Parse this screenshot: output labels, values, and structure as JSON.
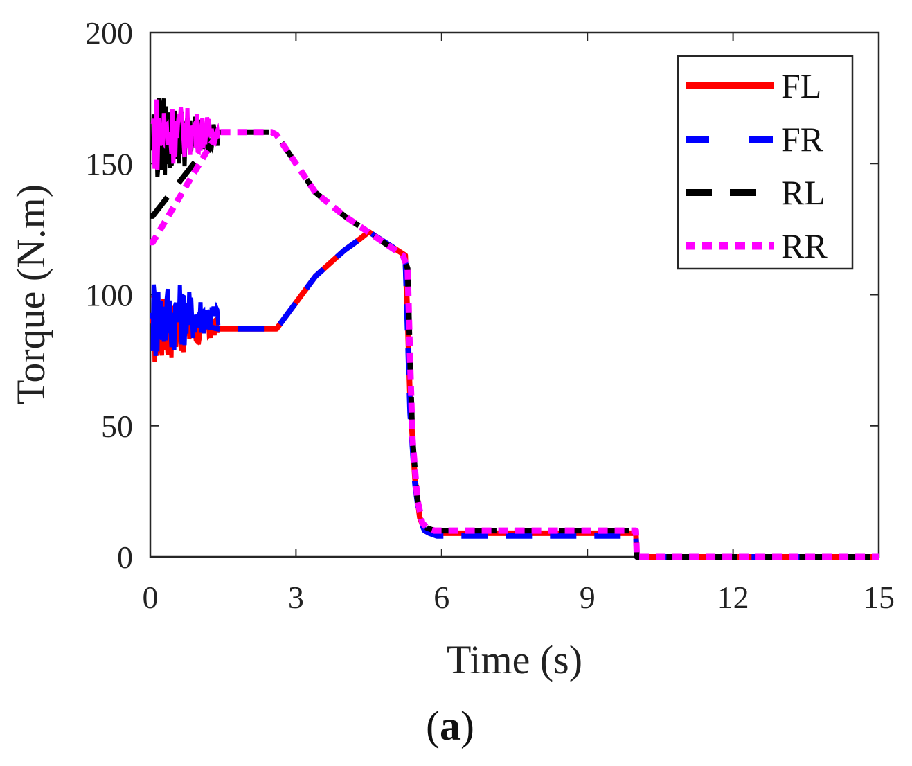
{
  "chart_data": {
    "type": "line",
    "title": "",
    "xlabel": "Time (s)",
    "ylabel": "Torque (N.m)",
    "caption_open": "(",
    "caption_letter": "a",
    "caption_close": ")",
    "xlim": [
      0,
      15
    ],
    "ylim": [
      0,
      200
    ],
    "xticks": [
      0,
      3,
      6,
      9,
      12,
      15
    ],
    "yticks": [
      0,
      50,
      100,
      150,
      200
    ],
    "grid": false,
    "legend_position": "top-right",
    "colors": {
      "FL": "#ff0000",
      "FR": "#0000ff",
      "RL": "#000000",
      "RR": "#ff00ff"
    },
    "series": [
      {
        "name": "FL",
        "style": "solid",
        "color": "#ff0000",
        "oscillation": {
          "t_start": 0.05,
          "t_end": 1.4,
          "center": 87,
          "amplitude": 15
        },
        "x": [
          0,
          0.05,
          1.4,
          2.5,
          2.6,
          3.0,
          3.4,
          4.0,
          4.3,
          4.5,
          5.25,
          5.3,
          5.35,
          5.45,
          5.55,
          5.65,
          5.75,
          5.9,
          6.2,
          10.0,
          10.02,
          15
        ],
        "y": [
          90,
          90,
          87,
          87,
          87,
          97,
          107,
          117,
          121,
          124,
          115,
          90,
          60,
          30,
          15,
          10,
          9,
          9,
          9,
          9,
          0,
          0
        ]
      },
      {
        "name": "FR",
        "style": "dashed",
        "color": "#0000ff",
        "oscillation": {
          "t_start": 0.05,
          "t_end": 1.4,
          "center": 92,
          "amplitude": 18
        },
        "x": [
          0,
          0.05,
          1.4,
          2.5,
          2.6,
          3.0,
          3.4,
          4.0,
          4.3,
          4.5,
          5.25,
          5.3,
          5.35,
          5.45,
          5.55,
          5.65,
          5.75,
          5.9,
          6.2,
          10.0,
          10.02,
          15
        ],
        "y": [
          92,
          92,
          87,
          87,
          87,
          97,
          107,
          117,
          121,
          124,
          115,
          85,
          55,
          28,
          14,
          10,
          9,
          8,
          8,
          8,
          0,
          0
        ]
      },
      {
        "name": "RL",
        "style": "dashed",
        "color": "#000000",
        "oscillation": {
          "t_start": 0.05,
          "t_end": 1.4,
          "center": 160,
          "amplitude": 18
        },
        "x": [
          0,
          0.05,
          1.4,
          2.5,
          2.6,
          3.0,
          3.4,
          4.0,
          4.4,
          5.2,
          5.3,
          5.35,
          5.4,
          5.5,
          5.6,
          5.7,
          5.85,
          6.0,
          10.0,
          10.02,
          15
        ],
        "y": [
          130,
          130,
          162,
          162,
          161,
          150,
          139,
          130,
          125,
          115,
          110,
          75,
          45,
          22,
          13,
          11,
          10,
          10,
          10,
          0,
          0
        ]
      },
      {
        "name": "RR",
        "style": "dotted",
        "color": "#ff00ff",
        "oscillation": {
          "t_start": 0.05,
          "t_end": 1.4,
          "center": 162,
          "amplitude": 16
        },
        "x": [
          0,
          0.05,
          1.4,
          2.5,
          2.6,
          3.0,
          3.4,
          4.0,
          4.4,
          5.2,
          5.3,
          5.35,
          5.4,
          5.5,
          5.6,
          5.7,
          5.85,
          6.0,
          10.0,
          10.02,
          15
        ],
        "y": [
          120,
          120,
          162,
          162,
          161,
          150,
          139,
          130,
          125,
          115,
          110,
          75,
          45,
          22,
          13,
          11,
          10,
          10,
          10,
          0,
          0
        ]
      }
    ]
  }
}
